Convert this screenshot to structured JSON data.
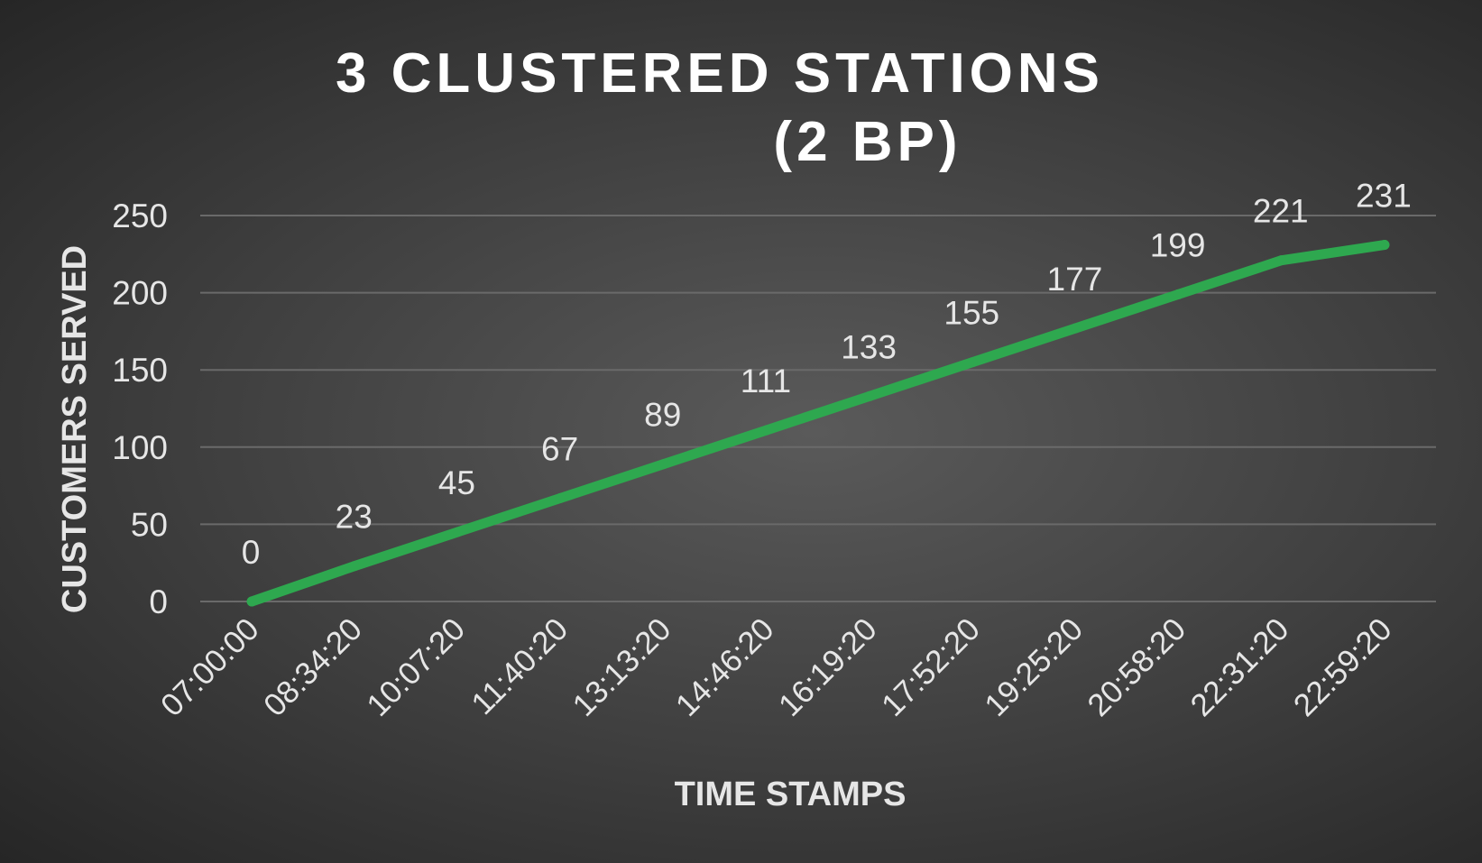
{
  "chart_data": {
    "type": "line",
    "title_lines": [
      "3 CLUSTERED STATIONS",
      "(2 BP)"
    ],
    "xlabel": "TIME STAMPS",
    "ylabel": "CUSTOMERS SERVED",
    "categories": [
      "07:00:00",
      "08:34:20",
      "10:07:20",
      "11:40:20",
      "13:13:20",
      "14:46:20",
      "16:19:20",
      "17:52:20",
      "19:25:20",
      "20:58:20",
      "22:31:20",
      "22:59:20"
    ],
    "series": [
      {
        "values": [
          0,
          23,
          45,
          67,
          89,
          111,
          133,
          155,
          177,
          199,
          221,
          231
        ],
        "color": "#2ea84f"
      }
    ],
    "yticks": [
      0,
      50,
      100,
      150,
      200,
      250
    ],
    "ylim": [
      0,
      250
    ],
    "grid": true,
    "legend": "none",
    "data_labels": true
  }
}
